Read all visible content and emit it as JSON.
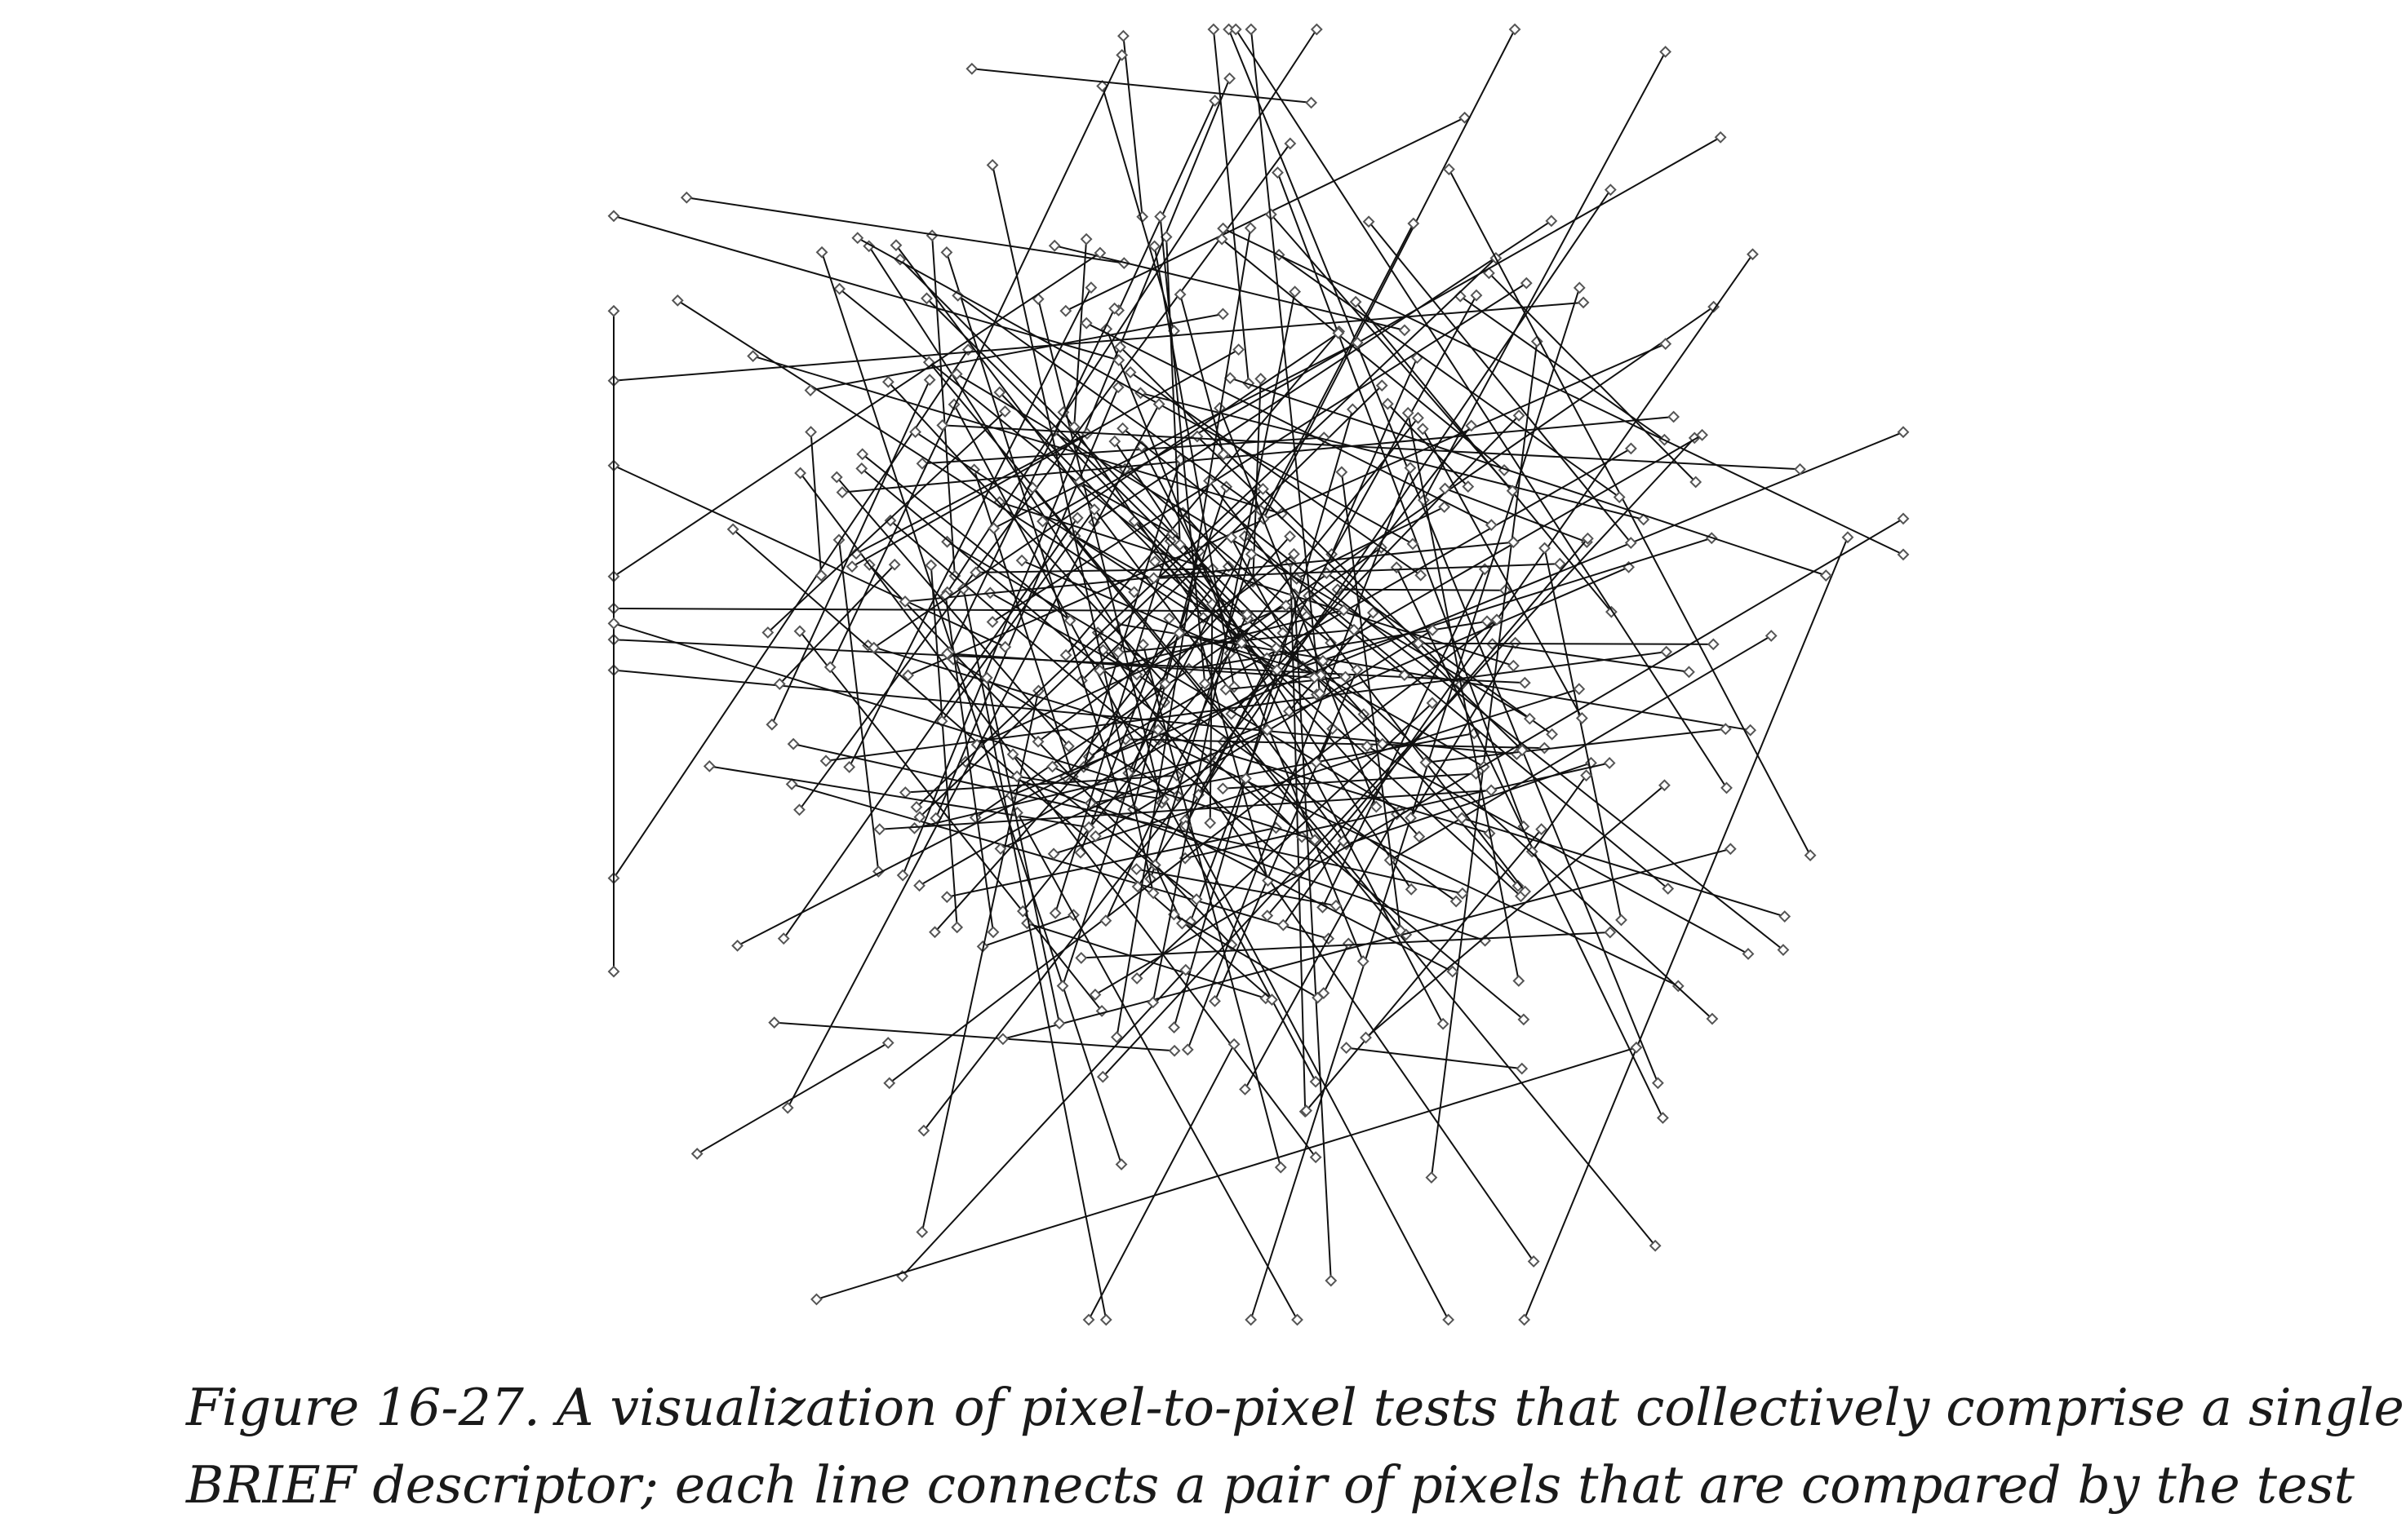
{
  "figure": {
    "caption_line1": "Figure 16-27. A visualization of pixel-to-pixel tests that collectively comprise a single",
    "caption_line2": "BRIEF descriptor; each line connects a pair of pixels that are compared by the test",
    "line_color": "#111111",
    "marker_color": "#555555",
    "marker_shape": "diamond"
  }
}
